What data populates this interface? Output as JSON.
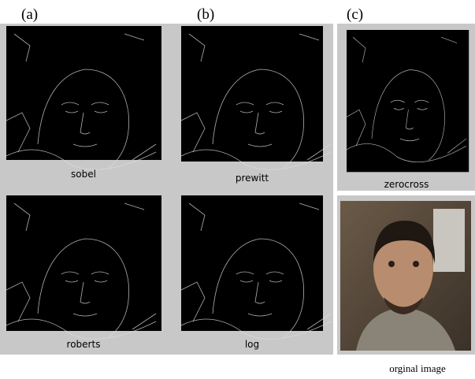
{
  "labels": [
    "(a)",
    "(b)",
    "(c)"
  ],
  "panels": [
    {
      "caption": "sobel"
    },
    {
      "caption": "prewitt"
    },
    {
      "caption": "roberts"
    },
    {
      "caption": "log"
    },
    {
      "caption": "zerocross"
    },
    {
      "caption": "orginal image"
    }
  ]
}
